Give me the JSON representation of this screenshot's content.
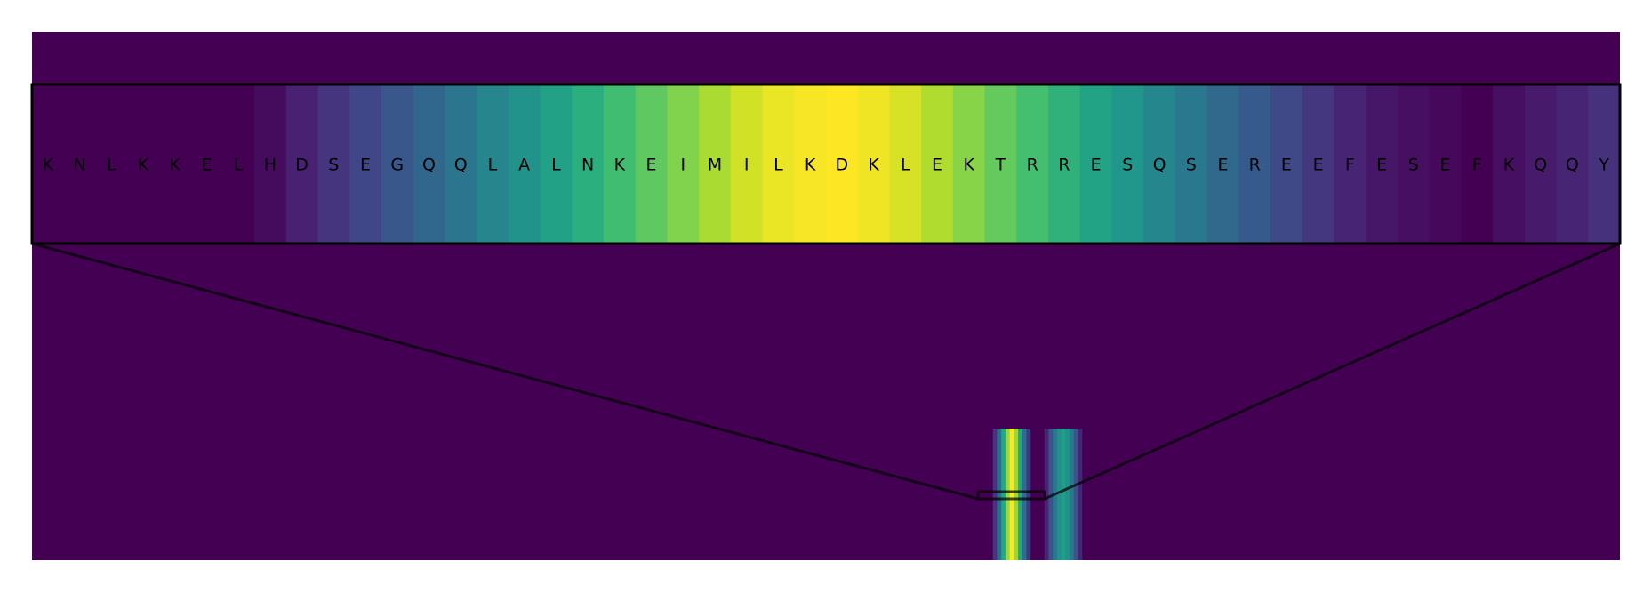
{
  "chart_data": {
    "type": "heatmap",
    "title": "",
    "xlabel": "",
    "ylabel": "",
    "colormap": "viridis",
    "value_range": [
      0,
      1
    ],
    "background_value": 0,
    "grid": false,
    "legend": "none",
    "zoom_panel": {
      "residues": [
        "K",
        "N",
        "L",
        "K",
        "K",
        "E",
        "L",
        "H",
        "D",
        "S",
        "E",
        "G",
        "Q",
        "Q",
        "L",
        "A",
        "L",
        "N",
        "K",
        "E",
        "I",
        "M",
        "I",
        "L",
        "K",
        "D",
        "K",
        "L",
        "E",
        "K",
        "T",
        "R",
        "R",
        "E",
        "S",
        "Q",
        "S",
        "E",
        "R",
        "E",
        "E",
        "F",
        "E",
        "S",
        "E",
        "F",
        "K",
        "Q",
        "Q",
        "Y"
      ],
      "values": [
        0,
        0,
        0,
        0,
        0,
        0,
        0,
        0.03,
        0.09,
        0.15,
        0.21,
        0.27,
        0.33,
        0.39,
        0.45,
        0.51,
        0.57,
        0.63,
        0.69,
        0.75,
        0.81,
        0.87,
        0.93,
        0.97,
        0.99,
        1.0,
        0.98,
        0.94,
        0.88,
        0.82,
        0.76,
        0.7,
        0.64,
        0.58,
        0.52,
        0.46,
        0.4,
        0.34,
        0.28,
        0.22,
        0.16,
        0.1,
        0.06,
        0.04,
        0.02,
        0.0,
        0.04,
        0.07,
        0.1,
        0.14
      ]
    },
    "overview_bands": [
      {
        "name": "band-1",
        "values": [
          0.0,
          0.15,
          0.35,
          0.6,
          0.85,
          1.0,
          0.85,
          0.6,
          0.35,
          0.15,
          0.0
        ]
      },
      {
        "name": "band-2",
        "values": [
          0.0,
          0.1,
          0.25,
          0.4,
          0.5,
          0.55,
          0.5,
          0.4,
          0.25,
          0.1,
          0.0
        ]
      }
    ]
  },
  "colors": {
    "frame": "#000000",
    "page_background": "#ffffff"
  }
}
